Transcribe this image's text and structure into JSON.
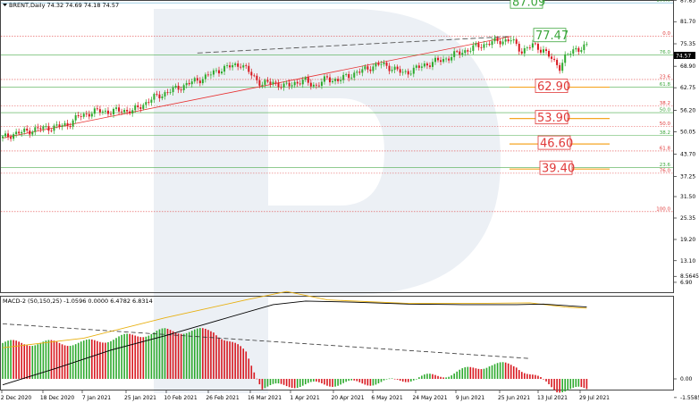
{
  "title": "BRENT,Daily  74.32 74.69 74.18 74.57",
  "macd_title": "MACD-2 (50,150,25) -1.0596 0.0000 6.4782 6.8314",
  "current_price": "74.57",
  "colors": {
    "bull": "#2eaa2e",
    "bear": "#d8181f",
    "fib_green": "#3ba53b",
    "fib_red": "#e03a3a",
    "target_orange": "#f5a623",
    "trend": "#e83030",
    "channel": "#555555",
    "macd_line": "#000000",
    "macd_signal": "#e8b010",
    "watermark": "#e9edf3"
  },
  "chart_data": {
    "type": "candlestick",
    "symbol": "BRENT",
    "timeframe": "Daily",
    "ohlc": [
      74.32,
      74.69,
      74.18,
      74.57
    ],
    "y_ticks": [
      "87.85",
      "81.70",
      "75.35",
      "68.90",
      "62.75",
      "56.20",
      "50.05",
      "43.70",
      "37.25",
      "31.50",
      "25.35",
      "19.20",
      "13.10",
      "6.90"
    ],
    "x_ticks": [
      "2 Dec 2020",
      "18 Dec 2020",
      "7 Jan 2021",
      "25 Jan 2021",
      "10 Feb 2021",
      "26 Feb 2021",
      "16 Mar 2021",
      "1 Apr 2021",
      "20 Apr 2021",
      "6 May 2021",
      "24 May 2021",
      "9 Jun 2021",
      "25 Jun 2021",
      "13 Jul 2021",
      "29 Jul 2021"
    ],
    "ylim": [
      6.9,
      87.85
    ],
    "close_path": [
      [
        0,
        48.3
      ],
      [
        4,
        49.5
      ],
      [
        8,
        50.1
      ],
      [
        12,
        50.8
      ],
      [
        16,
        51.2
      ],
      [
        20,
        51.5
      ],
      [
        24,
        52.2
      ],
      [
        28,
        54.4
      ],
      [
        32,
        55.5
      ],
      [
        36,
        56.1
      ],
      [
        40,
        55.8
      ],
      [
        44,
        56.3
      ],
      [
        48,
        56.0
      ],
      [
        52,
        58.0
      ],
      [
        56,
        59.9
      ],
      [
        60,
        61.2
      ],
      [
        64,
        62.4
      ],
      [
        68,
        63.7
      ],
      [
        72,
        64.9
      ],
      [
        76,
        66.2
      ],
      [
        80,
        67.9
      ],
      [
        84,
        68.8
      ],
      [
        88,
        69.6
      ],
      [
        92,
        66.5
      ],
      [
        96,
        63.7
      ],
      [
        100,
        64.4
      ],
      [
        104,
        63.0
      ],
      [
        108,
        64.2
      ],
      [
        112,
        64.6
      ],
      [
        116,
        63.3
      ],
      [
        120,
        65.4
      ],
      [
        124,
        64.8
      ],
      [
        128,
        66.3
      ],
      [
        132,
        67.3
      ],
      [
        136,
        68.7
      ],
      [
        140,
        69.5
      ],
      [
        144,
        68.4
      ],
      [
        148,
        66.9
      ],
      [
        152,
        67.9
      ],
      [
        156,
        69.3
      ],
      [
        160,
        70.2
      ],
      [
        164,
        71.1
      ],
      [
        168,
        72.5
      ],
      [
        172,
        73.6
      ],
      [
        176,
        74.7
      ],
      [
        180,
        75.6
      ],
      [
        184,
        76.2
      ],
      [
        188,
        76.4
      ],
      [
        192,
        73.3
      ],
      [
        196,
        74.9
      ],
      [
        200,
        73.6
      ],
      [
        204,
        70.0
      ],
      [
        206,
        68.8
      ],
      [
        208,
        71.5
      ],
      [
        212,
        73.9
      ],
      [
        216,
        74.57
      ]
    ],
    "channel_upper": [
      [
        72,
        72.7
      ],
      [
        188,
        77.47
      ]
    ],
    "trend_support": [
      [
        0,
        48.3
      ],
      [
        188,
        77.47
      ]
    ],
    "fib_levels_upper": [
      {
        "label": "100.0",
        "value": 87.09,
        "color": "green"
      },
      {
        "label": "0.0",
        "value": 77.47,
        "color": "red"
      },
      {
        "label": "76.0",
        "value": 72.2,
        "color": "green"
      },
      {
        "label": "23.6",
        "value": 65.1,
        "color": "red"
      },
      {
        "label": "61.8",
        "value": 62.9,
        "color": "green"
      },
      {
        "label": "38.2",
        "value": 57.5,
        "color": "red"
      },
      {
        "label": "50.0",
        "value": 55.6,
        "color": "green"
      },
      {
        "label": "50.0",
        "value": 51.6,
        "color": "red"
      },
      {
        "label": "38.2",
        "value": 49.1,
        "color": "green"
      },
      {
        "label": "61.8",
        "value": 44.6,
        "color": "red"
      },
      {
        "label": "23.6",
        "value": 39.8,
        "color": "green"
      },
      {
        "label": "76.0",
        "value": 38.2,
        "color": "red"
      },
      {
        "label": "100.0",
        "value": 27.2,
        "color": "red"
      }
    ],
    "targets": [
      {
        "label": "87.09",
        "value": 87.09,
        "color": "green"
      },
      {
        "label": "77.47",
        "value": 77.47,
        "color": "green"
      },
      {
        "label": "62.90",
        "value": 62.9,
        "color": "red"
      },
      {
        "label": "53.90",
        "value": 53.9,
        "color": "red"
      },
      {
        "label": "46.60",
        "value": 46.6,
        "color": "red"
      },
      {
        "label": "39.40",
        "value": 39.4,
        "color": "red"
      }
    ],
    "macd": {
      "y_ticks": [
        "8.5645",
        "0.00",
        "-1.5585"
      ],
      "ylim": [
        -1.5585,
        8.5645
      ],
      "macd_line": [
        [
          0,
          -0.5
        ],
        [
          20,
          0.9
        ],
        [
          40,
          2.4
        ],
        [
          60,
          3.6
        ],
        [
          80,
          4.9
        ],
        [
          100,
          6.2
        ],
        [
          112,
          6.5
        ],
        [
          130,
          6.4
        ],
        [
          150,
          6.25
        ],
        [
          170,
          6.2
        ],
        [
          190,
          6.2
        ],
        [
          200,
          6.25
        ],
        [
          216,
          6.0
        ]
      ],
      "signal_line": [
        [
          0,
          2.6
        ],
        [
          30,
          3.4
        ],
        [
          60,
          5.1
        ],
        [
          90,
          6.6
        ],
        [
          105,
          7.3
        ],
        [
          120,
          6.6
        ],
        [
          150,
          6.3
        ],
        [
          175,
          6.3
        ],
        [
          195,
          6.35
        ],
        [
          208,
          6.0
        ],
        [
          216,
          5.9
        ]
      ],
      "histogram_trend": [
        [
          0,
          3.0
        ],
        [
          30,
          3.0
        ],
        [
          60,
          4.0
        ],
        [
          78,
          4.0
        ],
        [
          90,
          2.2
        ],
        [
          96,
          -0.7
        ],
        [
          110,
          -0.5
        ],
        [
          140,
          -0.3
        ],
        [
          165,
          0.4
        ],
        [
          180,
          1.2
        ],
        [
          190,
          1.1
        ],
        [
          205,
          -0.9
        ],
        [
          216,
          -0.9
        ]
      ],
      "dashed_line": [
        [
          0,
          4.6
        ],
        [
          195,
          1.7
        ]
      ]
    }
  }
}
